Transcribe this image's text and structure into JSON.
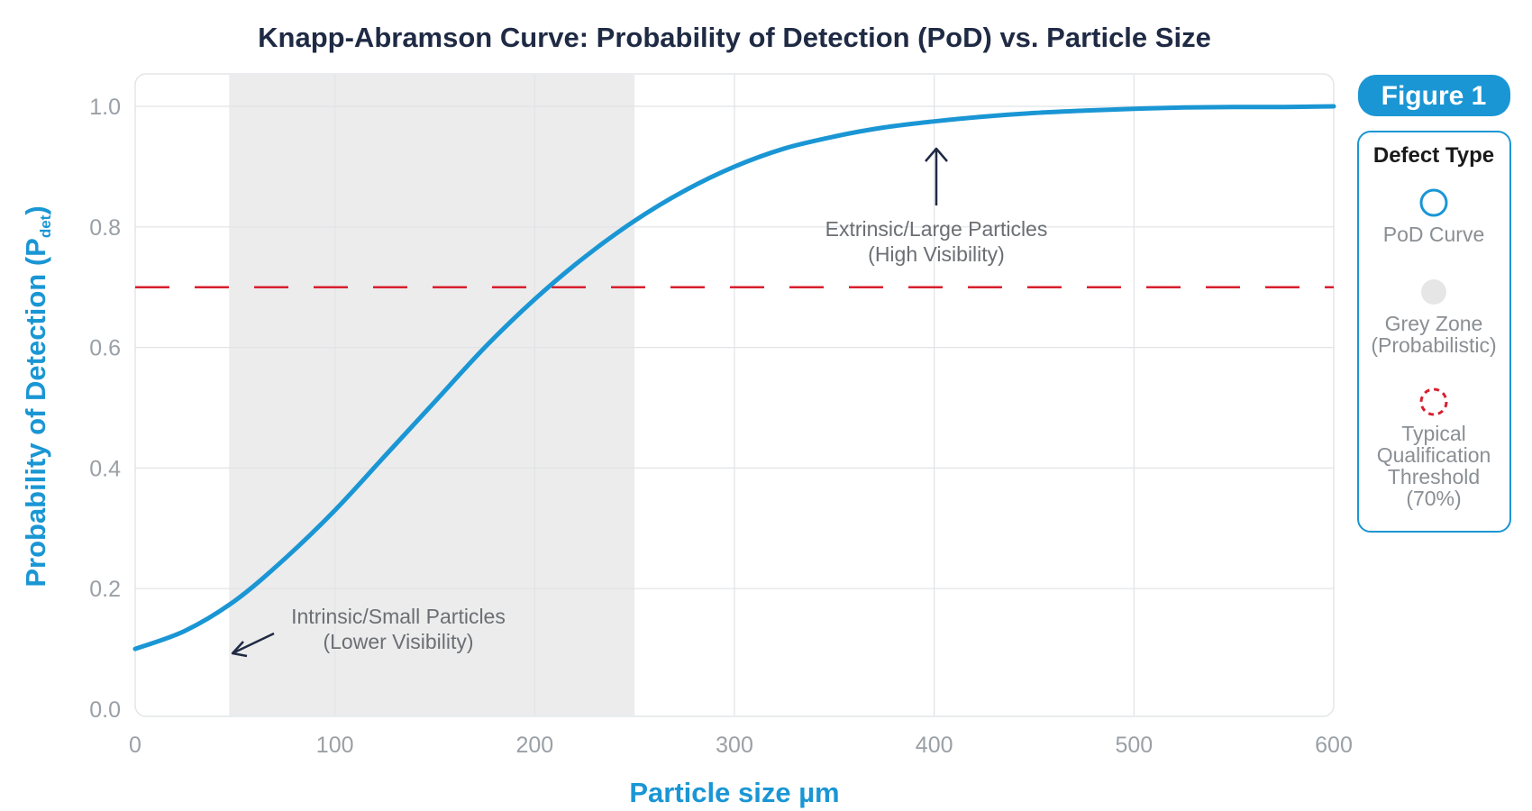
{
  "chart_data": {
    "type": "line",
    "title": "Knapp-Abramson Curve: Probability of Detection (PoD) vs. Particle Size",
    "xlabel": "Particle size µm",
    "ylabel": "Probability of Detection (P",
    "ylabel_subscript": "det",
    "ylabel_close": ")",
    "xlim": [
      0,
      600
    ],
    "ylim": [
      0,
      1
    ],
    "x_ticks": [
      0,
      100,
      200,
      300,
      400,
      500,
      600
    ],
    "x_tick_labels": [
      "0",
      "100",
      "200",
      "300",
      "400",
      "500",
      "600"
    ],
    "y_ticks": [
      0,
      0.2,
      0.4,
      0.6,
      0.8,
      1.0
    ],
    "y_tick_labels": [
      "0.0",
      "0.2",
      "0.4",
      "0.6",
      "0.8",
      "1.0"
    ],
    "grid": true,
    "series": [
      {
        "name": "PoD Curve",
        "color": "#1a96d4",
        "x": [
          0,
          25,
          50,
          75,
          100,
          125,
          150,
          175,
          200,
          225,
          250,
          275,
          300,
          325,
          350,
          375,
          400,
          425,
          450,
          475,
          500,
          525,
          550,
          575,
          600
        ],
        "y": [
          0.1,
          0.13,
          0.18,
          0.25,
          0.33,
          0.42,
          0.51,
          0.6,
          0.68,
          0.75,
          0.81,
          0.86,
          0.9,
          0.93,
          0.95,
          0.965,
          0.975,
          0.983,
          0.989,
          0.993,
          0.996,
          0.998,
          0.999,
          0.999,
          1.0
        ]
      }
    ],
    "threshold": {
      "y": 0.7,
      "color": "#d81f2e"
    },
    "grey_zone": {
      "x_start": 47,
      "x_end": 250,
      "color": "#ececec"
    },
    "annotations": [
      {
        "line1": "Intrinsic/Small Particles",
        "line2": "(Lower Visibility)"
      },
      {
        "line1": "Extrinsic/Large Particles",
        "line2": "(High Visibility)"
      }
    ],
    "legend": {
      "placement": "right",
      "badge": "Figure 1",
      "title": "Defect Type",
      "items": [
        {
          "lines": [
            "PoD Curve"
          ],
          "icon": "blue-circle-outline-icon",
          "color": "#1a96d4"
        },
        {
          "lines": [
            "Grey Zone",
            "(Probabilistic)"
          ],
          "icon": "grey-dot-icon",
          "color": "#e6e6e6"
        },
        {
          "lines": [
            "Typical",
            "Qualification",
            "Threshold",
            "(70%)"
          ],
          "icon": "red-dashed-circle-icon",
          "color": "#d81f2e"
        }
      ]
    },
    "colors": {
      "accent": "#1a96d4",
      "title": "#1f2a44",
      "arrow": "#1f2a44"
    }
  }
}
